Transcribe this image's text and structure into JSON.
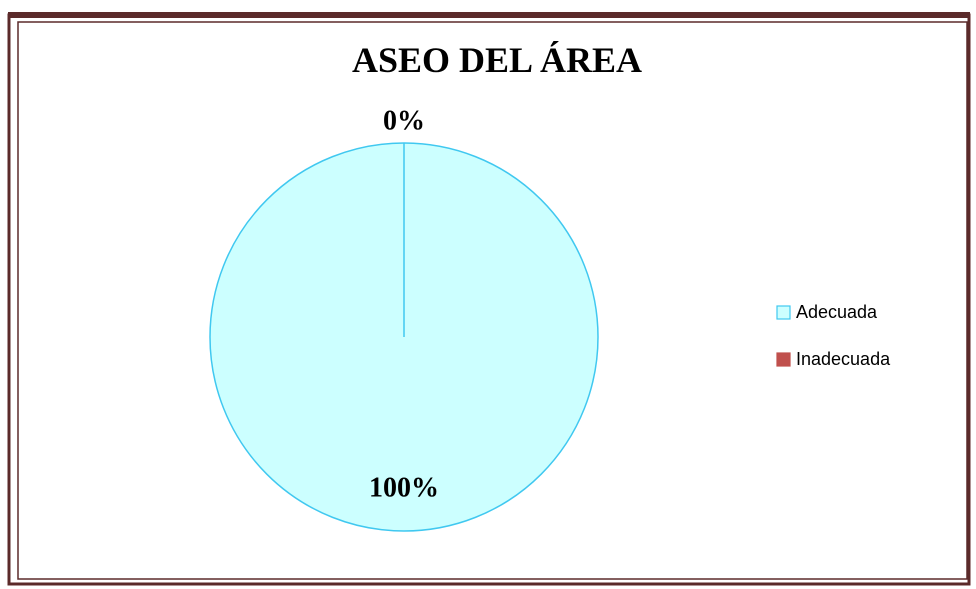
{
  "chart_data": {
    "type": "pie",
    "title": "ASEO DEL ÁREA",
    "categories": [
      "Adecuada",
      "Inadecuada"
    ],
    "values": [
      100,
      0
    ],
    "value_labels": [
      "100%",
      "0%"
    ],
    "colors": [
      "#ccffff",
      "#c0504d"
    ],
    "legend": "right"
  }
}
